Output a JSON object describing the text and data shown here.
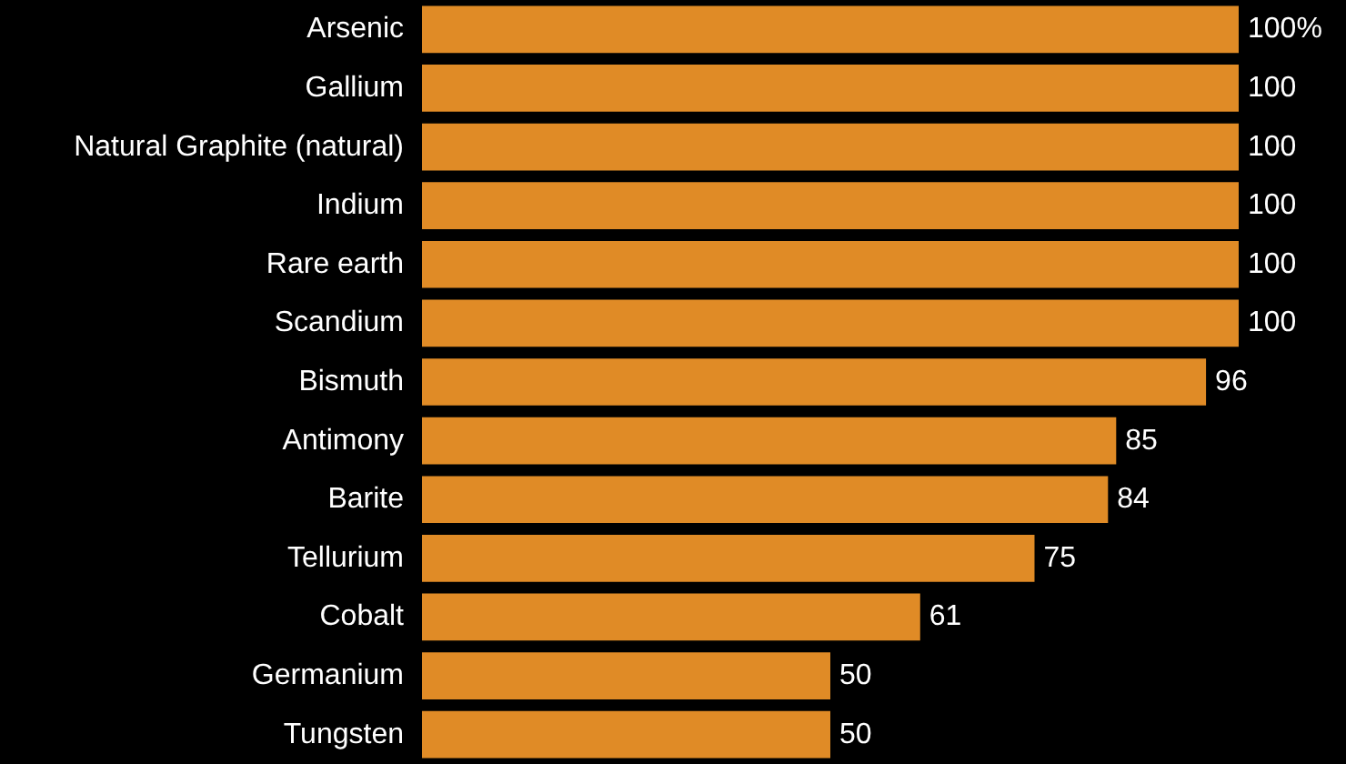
{
  "chart_data": {
    "type": "bar",
    "orientation": "horizontal",
    "categories": [
      "Arsenic",
      "Gallium",
      "Natural Graphite (natural)",
      "Indium",
      "Rare earth",
      "Scandium",
      "Bismuth",
      "Antimony",
      "Barite",
      "Tellurium",
      "Cobalt",
      "Germanium",
      "Tungsten"
    ],
    "values": [
      100,
      100,
      100,
      100,
      100,
      100,
      96,
      85,
      84,
      75,
      61,
      50,
      50
    ],
    "value_labels": [
      "100%",
      "100",
      "100",
      "100",
      "100",
      "100",
      "96",
      "85",
      "84",
      "75",
      "61",
      "50",
      "50"
    ],
    "color": "#e08b26"
  }
}
